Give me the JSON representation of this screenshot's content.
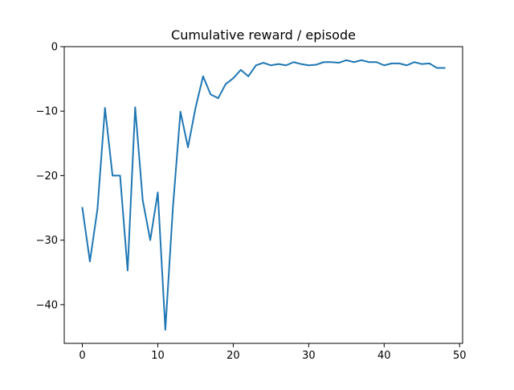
{
  "chart_data": {
    "type": "line",
    "title": "Cumulative reward / episode",
    "xlabel": "",
    "ylabel": "",
    "xlim": [
      -2.4,
      50.4
    ],
    "ylim": [
      -46.0,
      0.0
    ],
    "grid": false,
    "legend": "none",
    "x_ticks": [
      0,
      10,
      20,
      30,
      40,
      50
    ],
    "x_tick_labels": [
      "0",
      "10",
      "20",
      "30",
      "40",
      "50"
    ],
    "y_ticks": [
      0,
      -10,
      -20,
      -30,
      -40
    ],
    "y_tick_labels": [
      "0",
      "−10",
      "−20",
      "−30",
      "−40"
    ],
    "series": [
      {
        "color": "#1f77b4",
        "x": [
          0,
          1,
          2,
          3,
          4,
          5,
          6,
          7,
          8,
          9,
          10,
          11,
          12,
          13,
          14,
          15,
          16,
          17,
          18,
          19,
          20,
          21,
          22,
          23,
          24,
          25,
          26,
          27,
          28,
          29,
          30,
          31,
          32,
          33,
          34,
          35,
          36,
          37,
          38,
          39,
          40,
          41,
          42,
          43,
          44,
          45,
          46,
          47,
          48
        ],
        "values": [
          -25.0,
          -33.3,
          -25.2,
          -9.5,
          -20.0,
          -20.0,
          -34.7,
          -9.4,
          -23.8,
          -30.0,
          -22.6,
          -43.9,
          -25.0,
          -10.1,
          -15.6,
          -9.5,
          -4.6,
          -7.4,
          -8.0,
          -5.8,
          -4.9,
          -3.6,
          -4.6,
          -2.9,
          -2.5,
          -2.9,
          -2.7,
          -2.9,
          -2.4,
          -2.7,
          -2.9,
          -2.8,
          -2.4,
          -2.4,
          -2.5,
          -2.1,
          -2.4,
          -2.1,
          -2.4,
          -2.4,
          -2.9,
          -2.6,
          -2.6,
          -2.9,
          -2.4,
          -2.7,
          -2.6,
          -3.3,
          -3.3
        ]
      }
    ]
  }
}
